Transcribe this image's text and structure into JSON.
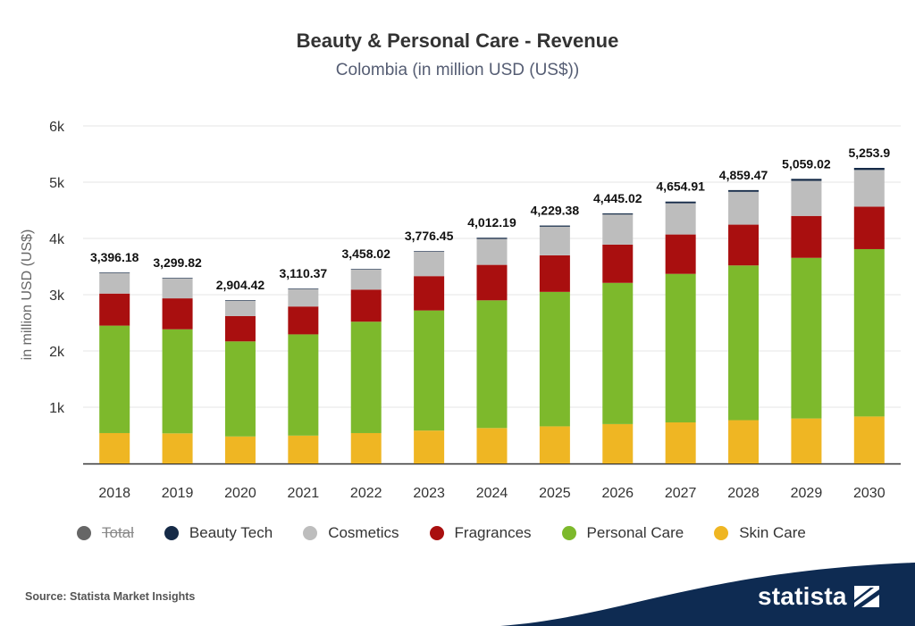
{
  "header": {
    "title": "Beauty & Personal Care - Revenue",
    "subtitle": "Colombia (in million USD (US$))"
  },
  "footer": {
    "source": "Source: Statista Market Insights",
    "logo_text": "statista"
  },
  "legend": [
    {
      "label": "Total",
      "color": "#666666",
      "disabled": true
    },
    {
      "label": "Beauty Tech",
      "color": "#152a47",
      "disabled": false
    },
    {
      "label": "Cosmetics",
      "color": "#bdbdbd",
      "disabled": false
    },
    {
      "label": "Fragrances",
      "color": "#a90f0f",
      "disabled": false
    },
    {
      "label": "Personal Care",
      "color": "#7db92c",
      "disabled": false
    },
    {
      "label": "Skin Care",
      "color": "#efb623",
      "disabled": false
    }
  ],
  "chart_data": {
    "type": "bar",
    "stacked": true,
    "categories": [
      "2018",
      "2019",
      "2020",
      "2021",
      "2022",
      "2023",
      "2024",
      "2025",
      "2026",
      "2027",
      "2028",
      "2029",
      "2030"
    ],
    "ylabel": "in million USD (US$)",
    "ylim": [
      0,
      6000
    ],
    "yticks": [
      0,
      1000,
      2000,
      3000,
      4000,
      5000,
      6000
    ],
    "ytick_labels": [
      "",
      "1k",
      "2k",
      "3k",
      "4k",
      "5k",
      "6k"
    ],
    "grid": true,
    "legend_position": "bottom",
    "totals": [
      "3,396.18",
      "3,299.82",
      "2,904.42",
      "3,110.37",
      "3,458.02",
      "3,776.45",
      "4,012.19",
      "4,229.38",
      "4,445.02",
      "4,654.91",
      "4,859.47",
      "5,059.02",
      "5,253.9"
    ],
    "series": [
      {
        "name": "Skin Care",
        "color": "#efb623",
        "values": [
          540,
          535,
          480,
          495,
          540,
          585,
          630,
          660,
          700,
          730,
          770,
          800,
          835
        ]
      },
      {
        "name": "Personal Care",
        "color": "#7db92c",
        "values": [
          1910,
          1850,
          1690,
          1800,
          1980,
          2135,
          2270,
          2390,
          2510,
          2640,
          2750,
          2855,
          2975
        ]
      },
      {
        "name": "Fragrances",
        "color": "#a90f0f",
        "values": [
          570,
          550,
          450,
          495,
          570,
          610,
          630,
          650,
          680,
          700,
          725,
          745,
          755
        ]
      },
      {
        "name": "Cosmetics",
        "color": "#bdbdbd",
        "values": [
          366,
          355,
          274,
          310,
          358,
          436,
          462,
          509,
          535,
          555,
          584,
          624,
          652
        ]
      },
      {
        "name": "Beauty Tech",
        "color": "#152a47",
        "values": [
          10,
          10,
          10,
          10,
          10,
          10,
          20,
          20,
          20,
          30,
          30,
          35,
          37
        ]
      }
    ]
  }
}
